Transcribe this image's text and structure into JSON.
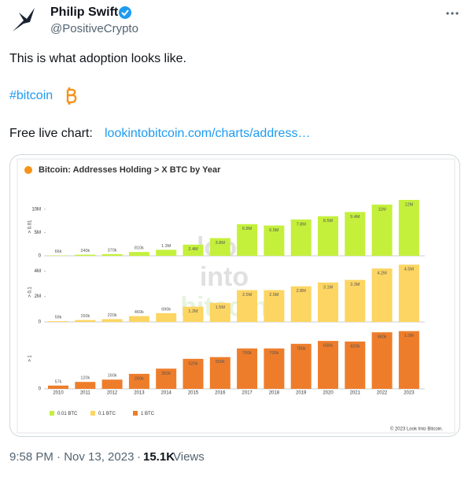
{
  "tweet": {
    "author": {
      "name": "Philip Swift",
      "handle": "@PositiveCrypto"
    },
    "text": {
      "line1": "This is what adoption looks like.",
      "hashtag": "#bitcoin",
      "link_label": "Free live chart:",
      "link": "lookintobitcoin.com/charts/address…"
    },
    "footer": {
      "time": "9:58 PM · Nov 13, 2023",
      "separator": "·",
      "views_count": "15.1K",
      "views_label": "Views"
    }
  },
  "chart_data": {
    "type": "bar",
    "title": "Bitcoin: Addresses Holding > X BTC by Year",
    "categories": [
      "2010",
      "2011",
      "2012",
      "2013",
      "2014",
      "2015",
      "2016",
      "2017",
      "2018",
      "2019",
      "2020",
      "2021",
      "2022",
      "2023"
    ],
    "watermark": [
      "look",
      "into",
      "bitcoin"
    ],
    "credit": "© 2023 Look Into Bitcoin.",
    "facets": [
      {
        "ylabel": "> 0.01",
        "ylim": [
          0,
          12500000
        ],
        "yticks": [
          0,
          {
            "value": 5000000,
            "label": "5M"
          },
          {
            "value": 10000000,
            "label": "10M"
          }
        ],
        "series": [
          {
            "name": "0.01 BTC",
            "color": "#c4f03c",
            "values": [
              66000,
              240000,
              370000,
              810000,
              1300000,
              2400000,
              3800000,
              6800000,
              6500000,
              7800000,
              8500000,
              9400000,
              11000000,
              12000000
            ],
            "value_labels": [
              "66k",
              "240k",
              "370k",
              "810k",
              "1.3M",
              "2.4M",
              "3.8M",
              "6.8M",
              "6.5M",
              "7.8M",
              "8.5M",
              "9.4M",
              "11M",
              "12M"
            ]
          }
        ]
      },
      {
        "ylabel": "> 0.1",
        "ylim": [
          0,
          4700000
        ],
        "yticks": [
          0,
          {
            "value": 2000000,
            "label": "2M"
          },
          {
            "value": 4000000,
            "label": "4M"
          }
        ],
        "series": [
          {
            "name": "0.1 BTC",
            "color": "#fcd562",
            "values": [
              59000,
              150000,
              220000,
              460000,
              690000,
              1200000,
              1500000,
              2500000,
              2500000,
              2800000,
              3100000,
              3300000,
              4200000,
              4500000
            ],
            "value_labels": [
              "59k",
              "150k",
              "220k",
              "460k",
              "690k",
              "1.2M",
              "1.5M",
              "2.5M",
              "2.5M",
              "2.8M",
              "3.1M",
              "3.3M",
              "4.2M",
              "4.5M"
            ]
          }
        ]
      },
      {
        "ylabel": "> 1",
        "ylim": [
          0,
          1050000
        ],
        "yticks": [
          0
        ],
        "series": [
          {
            "name": "1 BTC",
            "color": "#ee7d2b",
            "values": [
              57000,
              120000,
              160000,
              260000,
              350000,
              520000,
              550000,
              700000,
              700000,
              780000,
              830000,
              820000,
              980000,
              1000000
            ],
            "value_labels": [
              "57k",
              "120k",
              "160k",
              "260k",
              "350k",
              "520k",
              "550k",
              "700k",
              "700k",
              "780k",
              "830k",
              "820k",
              "980k",
              "1.0M"
            ]
          }
        ]
      }
    ]
  }
}
